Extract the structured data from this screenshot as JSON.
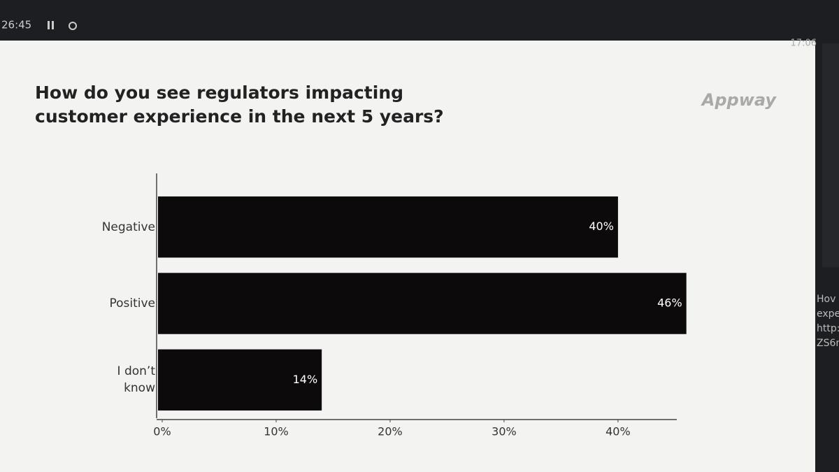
{
  "screen": {
    "timer": "26:45",
    "clock": "17:06",
    "logo": "Appway",
    "side_text": [
      "Hov",
      "expe",
      "http:",
      "ZS6n"
    ]
  },
  "chart_data": {
    "type": "hbar",
    "title": "How do you see regulators impacting customer experience in the next 5 years?",
    "categories": [
      "Negative",
      "Positive",
      "I don’t know"
    ],
    "values": [
      40,
      46,
      14
    ],
    "value_labels": [
      "40%",
      "46%",
      "14%"
    ],
    "color": "#0d0a0b",
    "xlim": [
      0,
      47
    ],
    "xticks": [
      {
        "value": 0,
        "label": "0%"
      },
      {
        "value": 10,
        "label": "10%"
      },
      {
        "value": 20,
        "label": "20%"
      },
      {
        "value": 30,
        "label": "30%"
      },
      {
        "value": 40,
        "label": "40%"
      }
    ]
  }
}
